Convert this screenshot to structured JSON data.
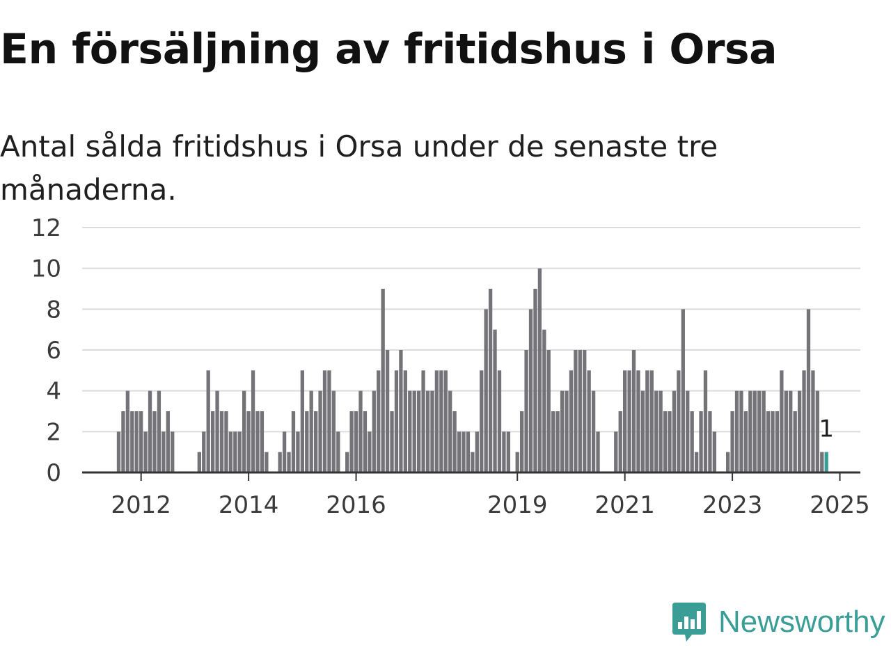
{
  "title": "En försäljning av fritidshus i Orsa",
  "subtitle": "Antal sålda fritidshus i Orsa under de senaste tre månaderna.",
  "brand": {
    "name": "Newsworthy",
    "icon": "newsworthy-logo-icon",
    "color": "#3b9e96"
  },
  "colors": {
    "bar": "#747378",
    "highlight": "#3b9e96",
    "grid": "#dcdcdc",
    "axis": "#333333"
  },
  "chart_data": {
    "type": "bar",
    "title": "En försäljning av fritidshus i Orsa",
    "subtitle": "Antal sålda fritidshus i Orsa under de senaste tre månaderna.",
    "xlabel": "",
    "ylabel": "",
    "ylim": [
      0,
      12
    ],
    "yticks": [
      "0",
      "2",
      "4",
      "6",
      "8",
      "10",
      "12"
    ],
    "xticks": [
      "2012",
      "2014",
      "2016",
      "2019",
      "2021",
      "2023",
      "2025"
    ],
    "grid": true,
    "start": "2011-08",
    "frequency": "monthly",
    "values": [
      2,
      3,
      4,
      3,
      3,
      3,
      2,
      4,
      3,
      4,
      2,
      3,
      2,
      0,
      0,
      0,
      0,
      0,
      1,
      2,
      5,
      3,
      4,
      3,
      3,
      2,
      2,
      2,
      4,
      3,
      5,
      3,
      3,
      1,
      0,
      0,
      1,
      2,
      1,
      3,
      2,
      5,
      3,
      4,
      3,
      4,
      5,
      5,
      4,
      2,
      0,
      1,
      3,
      3,
      4,
      3,
      2,
      4,
      5,
      9,
      6,
      3,
      5,
      6,
      5,
      4,
      4,
      4,
      5,
      4,
      4,
      5,
      5,
      5,
      4,
      3,
      2,
      2,
      2,
      1,
      2,
      5,
      8,
      9,
      7,
      5,
      2,
      2,
      0,
      1,
      3,
      6,
      8,
      9,
      10,
      7,
      6,
      3,
      3,
      4,
      4,
      5,
      6,
      6,
      6,
      5,
      4,
      2,
      0,
      0,
      0,
      2,
      3,
      5,
      5,
      6,
      5,
      4,
      5,
      5,
      4,
      4,
      3,
      3,
      4,
      5,
      8,
      4,
      3,
      1,
      3,
      5,
      3,
      2,
      0,
      0,
      1,
      3,
      4,
      4,
      3,
      4,
      4,
      4,
      4,
      3,
      3,
      3,
      5,
      4,
      4,
      3,
      4,
      5,
      8,
      5,
      4,
      1,
      1
    ],
    "highlight": {
      "value": 1,
      "label": "1"
    }
  }
}
